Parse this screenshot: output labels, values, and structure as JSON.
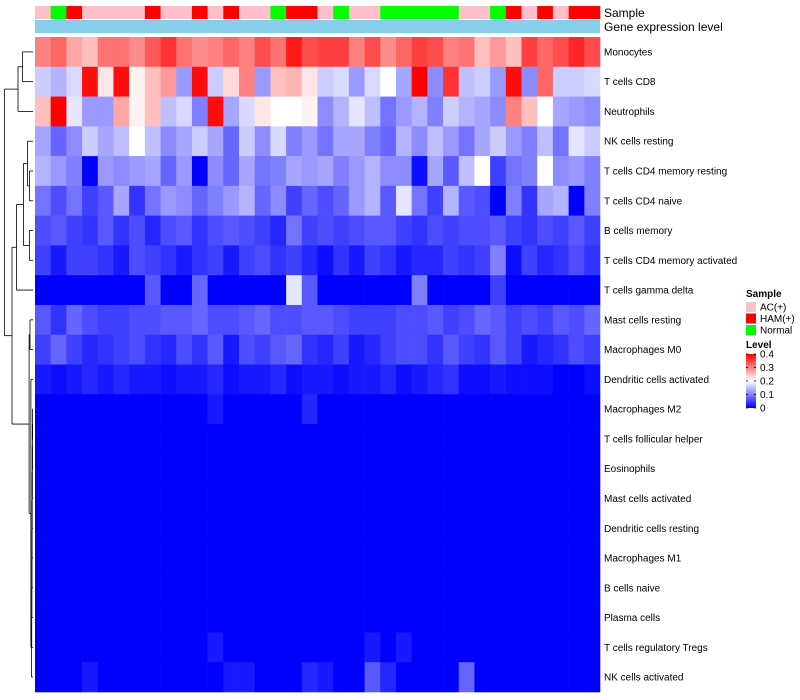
{
  "chart_data": {
    "type": "heatmap",
    "title": "",
    "annotation_labels": [
      "Sample",
      "Gene expression level"
    ],
    "rows": [
      "Monocytes",
      "T cells CD8",
      "Neutrophils",
      "NK cells resting",
      "T cells CD4 memory resting",
      "T cells CD4 naive",
      "B cells memory",
      "T cells CD4 memory activated",
      "T cells gamma delta",
      "Mast cells resting",
      "Macrophages M0",
      "Dendritic cells activated",
      "Macrophages M2",
      "T cells follicular helper",
      "Eosinophils",
      "Mast cells activated",
      "Dendritic cells resting",
      "Macrophages M1",
      "B cells naive",
      "Plasma cells",
      "T cells regulatory  Tregs",
      "NK cells activated"
    ],
    "samples": [
      "AC(+)",
      "Normal",
      "HAM(+)",
      "AC(+)",
      "AC(+)",
      "AC(+)",
      "AC(+)",
      "HAM(+)",
      "AC(+)",
      "AC(+)",
      "HAM(+)",
      "AC(+)",
      "HAM(+)",
      "AC(+)",
      "AC(+)",
      "Normal",
      "HAM(+)",
      "HAM(+)",
      "AC(+)",
      "Normal",
      "AC(+)",
      "AC(+)",
      "Normal",
      "Normal",
      "Normal",
      "Normal",
      "Normal",
      "AC(+)",
      "AC(+)",
      "Normal",
      "HAM(+)",
      "AC(+)",
      "HAM(+)",
      "AC(+)",
      "HAM(+)",
      "HAM(+)"
    ],
    "values": [
      [
        0.3,
        0.32,
        0.27,
        0.25,
        0.31,
        0.31,
        0.29,
        0.33,
        0.36,
        0.31,
        0.29,
        0.3,
        0.32,
        0.3,
        0.34,
        0.31,
        0.38,
        0.34,
        0.35,
        0.35,
        0.3,
        0.34,
        0.29,
        0.32,
        0.35,
        0.34,
        0.3,
        0.31,
        0.25,
        0.28,
        0.25,
        0.35,
        0.32,
        0.34,
        0.37,
        0.34
      ],
      [
        0.16,
        0.14,
        0.17,
        0.39,
        0.22,
        0.39,
        0.21,
        0.25,
        0.28,
        0.12,
        0.39,
        0.16,
        0.23,
        0.3,
        0.12,
        0.25,
        0.26,
        0.22,
        0.16,
        0.17,
        0.12,
        0.17,
        0.2,
        0.13,
        0.4,
        0.11,
        0.36,
        0.15,
        0.16,
        0.12,
        0.39,
        0.11,
        0.32,
        0.16,
        0.16,
        0.17
      ],
      [
        0.25,
        0.4,
        0.18,
        0.12,
        0.12,
        0.27,
        0.21,
        0.25,
        0.15,
        0.17,
        0.1,
        0.39,
        0.13,
        0.17,
        0.22,
        0.2,
        0.2,
        0.21,
        0.11,
        0.14,
        0.18,
        0.15,
        0.09,
        0.12,
        0.14,
        0.1,
        0.16,
        0.14,
        0.13,
        0.11,
        0.3,
        0.25,
        0.2,
        0.13,
        0.12,
        0.11
      ],
      [
        0.13,
        0.08,
        0.11,
        0.16,
        0.13,
        0.15,
        0.2,
        0.15,
        0.11,
        0.13,
        0.16,
        0.13,
        0.08,
        0.16,
        0.11,
        0.17,
        0.1,
        0.12,
        0.09,
        0.13,
        0.13,
        0.1,
        0.08,
        0.14,
        0.11,
        0.15,
        0.12,
        0.09,
        0.13,
        0.16,
        0.12,
        0.1,
        0.15,
        0.09,
        0.18,
        0.16
      ],
      [
        0.14,
        0.12,
        0.1,
        0.0,
        0.12,
        0.11,
        0.12,
        0.13,
        0.08,
        0.12,
        0.0,
        0.11,
        0.08,
        0.13,
        0.09,
        0.1,
        0.13,
        0.12,
        0.13,
        0.1,
        0.12,
        0.14,
        0.11,
        0.11,
        0.01,
        0.13,
        0.07,
        0.15,
        0.2,
        0.05,
        0.09,
        0.1,
        0.2,
        0.11,
        0.12,
        0.1
      ],
      [
        0.09,
        0.06,
        0.09,
        0.05,
        0.07,
        0.13,
        0.04,
        0.09,
        0.12,
        0.11,
        0.08,
        0.1,
        0.12,
        0.14,
        0.08,
        0.11,
        0.05,
        0.08,
        0.06,
        0.08,
        0.12,
        0.14,
        0.07,
        0.18,
        0.09,
        0.05,
        0.14,
        0.07,
        0.06,
        0.0,
        0.1,
        0.04,
        0.13,
        0.14,
        0.0,
        0.1
      ],
      [
        0.06,
        0.07,
        0.05,
        0.04,
        0.07,
        0.04,
        0.06,
        0.03,
        0.06,
        0.07,
        0.04,
        0.06,
        0.07,
        0.06,
        0.05,
        0.03,
        0.09,
        0.05,
        0.06,
        0.05,
        0.06,
        0.07,
        0.07,
        0.05,
        0.04,
        0.06,
        0.05,
        0.06,
        0.06,
        0.07,
        0.05,
        0.04,
        0.06,
        0.05,
        0.07,
        0.05
      ],
      [
        0.05,
        0.02,
        0.05,
        0.05,
        0.04,
        0.02,
        0.06,
        0.05,
        0.04,
        0.02,
        0.04,
        0.05,
        0.02,
        0.05,
        0.06,
        0.04,
        0.05,
        0.03,
        0.01,
        0.04,
        0.02,
        0.05,
        0.04,
        0.02,
        0.03,
        0.03,
        0.05,
        0.04,
        0.05,
        0.1,
        0.01,
        0.05,
        0.03,
        0.04,
        0.06,
        0.04
      ],
      [
        0.0,
        0.0,
        0.0,
        0.0,
        0.0,
        0.0,
        0.0,
        0.07,
        0.0,
        0.0,
        0.08,
        0.0,
        0.0,
        0.0,
        0.0,
        0.0,
        0.18,
        0.07,
        0.0,
        0.0,
        0.0,
        0.0,
        0.0,
        0.0,
        0.1,
        0.0,
        0.0,
        0.0,
        0.0,
        0.05,
        0.0,
        0.0,
        0.0,
        0.0,
        0.0,
        0.0
      ],
      [
        0.07,
        0.04,
        0.08,
        0.06,
        0.05,
        0.05,
        0.06,
        0.06,
        0.07,
        0.07,
        0.08,
        0.06,
        0.06,
        0.07,
        0.08,
        0.06,
        0.06,
        0.07,
        0.07,
        0.06,
        0.05,
        0.05,
        0.05,
        0.06,
        0.06,
        0.07,
        0.05,
        0.06,
        0.08,
        0.07,
        0.05,
        0.06,
        0.05,
        0.07,
        0.06,
        0.08
      ],
      [
        0.05,
        0.08,
        0.05,
        0.03,
        0.04,
        0.05,
        0.06,
        0.04,
        0.03,
        0.06,
        0.04,
        0.07,
        0.02,
        0.06,
        0.05,
        0.07,
        0.08,
        0.04,
        0.03,
        0.05,
        0.02,
        0.03,
        0.05,
        0.06,
        0.06,
        0.04,
        0.07,
        0.05,
        0.04,
        0.07,
        0.05,
        0.02,
        0.03,
        0.04,
        0.06,
        0.05
      ],
      [
        0.02,
        0.01,
        0.02,
        0.03,
        0.02,
        0.03,
        0.02,
        0.02,
        0.01,
        0.02,
        0.02,
        0.03,
        0.01,
        0.02,
        0.02,
        0.03,
        0.01,
        0.02,
        0.02,
        0.01,
        0.02,
        0.02,
        0.03,
        0.01,
        0.02,
        0.03,
        0.04,
        0.01,
        0.01,
        0.02,
        0.01,
        0.01,
        0.01,
        0.0,
        0.0,
        0.01
      ],
      [
        0.0,
        0.0,
        0.0,
        0.0,
        0.0,
        0.0,
        0.0,
        0.0,
        0.0,
        0.0,
        0.0,
        0.02,
        0.0,
        0.0,
        0.0,
        0.0,
        0.0,
        0.03,
        0.0,
        0.0,
        0.0,
        0.0,
        0.0,
        0.0,
        0.0,
        0.0,
        0.0,
        0.0,
        0.0,
        0.0,
        0.0,
        0.0,
        0.0,
        0.0,
        0.0,
        0.0
      ],
      [
        0.0,
        0.0,
        0.0,
        0.0,
        0.0,
        0.0,
        0.0,
        0.0,
        0.0,
        0.0,
        0.0,
        0.0,
        0.0,
        0.0,
        0.0,
        0.0,
        0.0,
        0.0,
        0.0,
        0.0,
        0.0,
        0.0,
        0.0,
        0.0,
        0.0,
        0.0,
        0.0,
        0.0,
        0.0,
        0.0,
        0.0,
        0.0,
        0.0,
        0.0,
        0.0,
        0.0
      ],
      [
        0.0,
        0.0,
        0.0,
        0.0,
        0.0,
        0.0,
        0.0,
        0.0,
        0.0,
        0.0,
        0.0,
        0.0,
        0.0,
        0.0,
        0.0,
        0.0,
        0.0,
        0.0,
        0.0,
        0.0,
        0.0,
        0.0,
        0.0,
        0.0,
        0.0,
        0.0,
        0.0,
        0.0,
        0.0,
        0.0,
        0.0,
        0.0,
        0.0,
        0.0,
        0.0,
        0.0
      ],
      [
        0.0,
        0.0,
        0.0,
        0.0,
        0.0,
        0.0,
        0.0,
        0.0,
        0.0,
        0.0,
        0.0,
        0.0,
        0.0,
        0.0,
        0.0,
        0.0,
        0.0,
        0.0,
        0.0,
        0.0,
        0.0,
        0.0,
        0.0,
        0.0,
        0.0,
        0.0,
        0.0,
        0.0,
        0.0,
        0.0,
        0.0,
        0.0,
        0.0,
        0.0,
        0.0,
        0.0
      ],
      [
        0.0,
        0.0,
        0.0,
        0.0,
        0.0,
        0.0,
        0.0,
        0.0,
        0.0,
        0.0,
        0.0,
        0.0,
        0.0,
        0.0,
        0.0,
        0.0,
        0.0,
        0.0,
        0.0,
        0.0,
        0.0,
        0.0,
        0.0,
        0.0,
        0.0,
        0.0,
        0.0,
        0.0,
        0.0,
        0.0,
        0.0,
        0.0,
        0.0,
        0.0,
        0.0,
        0.0
      ],
      [
        0.0,
        0.0,
        0.0,
        0.0,
        0.0,
        0.0,
        0.0,
        0.0,
        0.0,
        0.0,
        0.0,
        0.0,
        0.0,
        0.0,
        0.0,
        0.0,
        0.0,
        0.0,
        0.0,
        0.0,
        0.0,
        0.0,
        0.0,
        0.0,
        0.0,
        0.0,
        0.0,
        0.0,
        0.0,
        0.0,
        0.0,
        0.0,
        0.0,
        0.0,
        0.0,
        0.0
      ],
      [
        0.0,
        0.0,
        0.0,
        0.0,
        0.0,
        0.0,
        0.0,
        0.0,
        0.0,
        0.0,
        0.0,
        0.0,
        0.0,
        0.0,
        0.0,
        0.0,
        0.0,
        0.0,
        0.0,
        0.0,
        0.0,
        0.0,
        0.0,
        0.0,
        0.0,
        0.0,
        0.0,
        0.0,
        0.0,
        0.0,
        0.0,
        0.0,
        0.0,
        0.0,
        0.0,
        0.0
      ],
      [
        0.0,
        0.0,
        0.0,
        0.0,
        0.0,
        0.0,
        0.0,
        0.0,
        0.0,
        0.0,
        0.0,
        0.0,
        0.0,
        0.0,
        0.0,
        0.0,
        0.0,
        0.0,
        0.0,
        0.0,
        0.0,
        0.0,
        0.0,
        0.0,
        0.0,
        0.0,
        0.0,
        0.0,
        0.0,
        0.0,
        0.0,
        0.0,
        0.0,
        0.0,
        0.0,
        0.0
      ],
      [
        0.0,
        0.0,
        0.0,
        0.0,
        0.0,
        0.0,
        0.0,
        0.0,
        0.0,
        0.0,
        0.0,
        0.02,
        0.0,
        0.0,
        0.0,
        0.0,
        0.0,
        0.0,
        0.0,
        0.0,
        0.0,
        0.02,
        0.0,
        0.02,
        0.0,
        0.0,
        0.0,
        0.0,
        0.0,
        0.0,
        0.0,
        0.0,
        0.0,
        0.0,
        0.0,
        0.0
      ],
      [
        0.0,
        0.0,
        0.0,
        0.02,
        0.0,
        0.0,
        0.0,
        0.0,
        0.0,
        0.0,
        0.0,
        0.0,
        0.02,
        0.02,
        0.0,
        0.0,
        0.0,
        0.03,
        0.02,
        0.0,
        0.0,
        0.07,
        0.03,
        0.0,
        0.0,
        0.0,
        0.0,
        0.08,
        0.0,
        0.0,
        0.0,
        0.0,
        0.0,
        0.0,
        0.0,
        0.0
      ]
    ],
    "legend": {
      "sample_title": "Sample",
      "sample_items": [
        {
          "label": "AC(+)",
          "color": "#ffc0cb"
        },
        {
          "label": "HAM(+)",
          "color": "#ff0000"
        },
        {
          "label": "Normal",
          "color": "#00ff00"
        }
      ],
      "level_title": "Level",
      "level_ticks": [
        {
          "value": 0.4,
          "label": "0.4"
        },
        {
          "value": 0.3,
          "label": "0.3"
        },
        {
          "value": 0.2,
          "label": "0.2"
        },
        {
          "value": 0.1,
          "label": "0.1"
        },
        {
          "value": 0,
          "label": "0"
        }
      ],
      "range": [
        0,
        0.4
      ],
      "placement": "right"
    },
    "colors": {
      "low": "#0000ff",
      "mid": "#ffffff",
      "high": "#ff0000",
      "gene_expression_bar": "#87ceeb",
      "annotation_separator": "#ffffff",
      "dendrogram": "#000000"
    }
  }
}
